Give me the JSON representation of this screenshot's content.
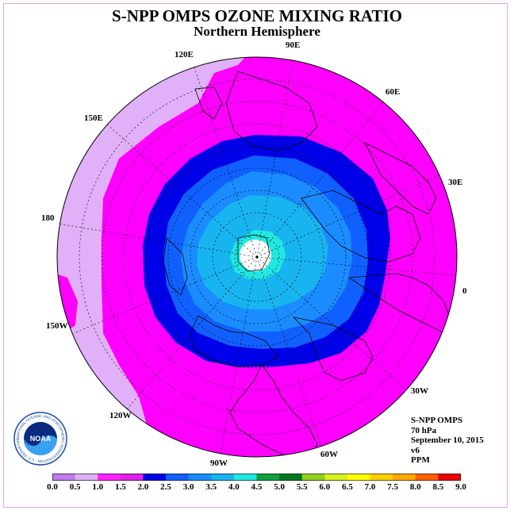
{
  "title": "S-NPP OMPS OZONE MIXING RATIO",
  "subtitle": "Northern Hemisphere",
  "longitude_labels": {
    "lon_120E": "120E",
    "lon_90E": "90E",
    "lon_60E": "60E",
    "lon_30E": "30E",
    "lon_0": "0",
    "lon_30W": "30W",
    "lon_60W": "60W",
    "lon_90W": "90W",
    "lon_120W": "120W",
    "lon_150W": "150W",
    "lon_180": "180",
    "lon_150E": "150E"
  },
  "info": {
    "instrument": "S-NPP OMPS",
    "level": "70 hPa",
    "date": "September 10, 2015",
    "version": "v6",
    "units": "PPM"
  },
  "logo": {
    "text": "NOAA",
    "ring_text": "NATIONAL OCEANIC AND ATMOSPHERIC ADMINISTRATION · U.S. DEPARTMENT OF COMMERCE"
  },
  "colorbar": {
    "ticks": [
      "0.0",
      "0.5",
      "1.0",
      "1.5",
      "2.0",
      "2.5",
      "3.0",
      "3.5",
      "4.0",
      "4.5",
      "5.0",
      "5.5",
      "6.0",
      "6.5",
      "7.0",
      "7.5",
      "8.0",
      "8.5",
      "9.0"
    ],
    "colors": [
      "#c07ce8",
      "#e0b0f4",
      "#ff22ff",
      "#e020e8",
      "#0000e8",
      "#1060ff",
      "#1a8cff",
      "#18b4f0",
      "#20e8e0",
      "#10a040",
      "#007a20",
      "#90d020",
      "#d8f020",
      "#ffff00",
      "#ffd000",
      "#ffa800",
      "#ff6000",
      "#ee0000",
      "#8b5a2b"
    ]
  },
  "map_colors": {
    "band_1_0_1_5": "#ff00ff",
    "band_0_5_1_0": "#e0b0f8",
    "band_1_5_2_0": "#0000e8",
    "band_2_0_2_5": "#1060ff",
    "band_2_5_3_0": "#1a8cff",
    "band_3_0_3_5": "#18b4f0",
    "band_3_5_4_0": "#20e8e0"
  }
}
